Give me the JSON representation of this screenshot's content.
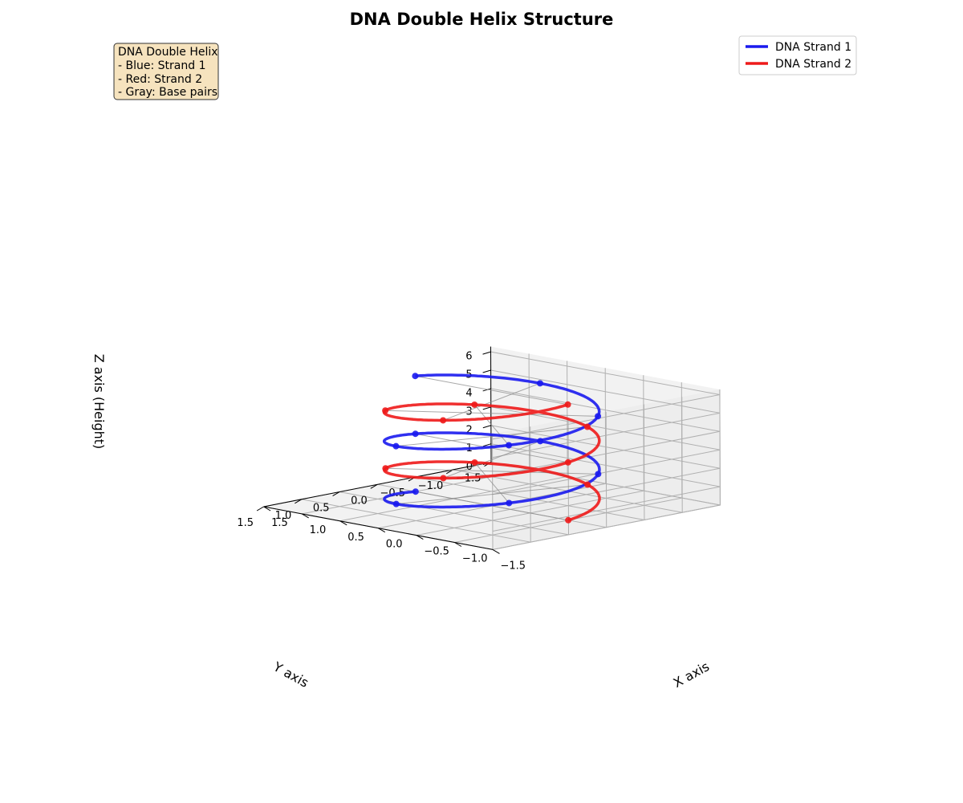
{
  "chart_data": {
    "type": "line",
    "projection": "3d",
    "title": "DNA Double Helix Structure",
    "xlabel": "X axis",
    "ylabel": "Y axis",
    "zlabel": "Z axis (Height)",
    "xlim": [
      -1.5,
      1.5
    ],
    "ylim": [
      -1.5,
      1.5
    ],
    "zlim": [
      0,
      6.28
    ],
    "x_ticks": [
      "−1.5",
      "−1.0",
      "−0.5",
      "0.0",
      "0.5",
      "1.0",
      "1.5"
    ],
    "y_ticks": [
      "−1.5",
      "−1.0",
      "−0.5",
      "0.0",
      "0.5",
      "1.0",
      "1.5"
    ],
    "z_ticks": [
      "0",
      "1",
      "2",
      "3",
      "4",
      "5",
      "6"
    ],
    "grid": true,
    "legend_position": "top-right",
    "series": [
      {
        "name": "DNA Strand 1",
        "color": "#1a1aee",
        "param": "x = cos(t), y = sin(t), z = t / 2",
        "t_range": [
          0,
          12.566
        ],
        "marker_t": [
          0,
          1.257,
          2.513,
          3.77,
          5.027,
          6.283,
          7.54,
          8.796,
          10.053,
          11.31,
          12.566
        ]
      },
      {
        "name": "DNA Strand 2",
        "color": "#ee1a1a",
        "param": "x = cos(t + π), y = sin(t + π), z = t / 2",
        "t_range": [
          0,
          12.566
        ],
        "marker_t": [
          0,
          1.257,
          2.513,
          3.77,
          5.027,
          6.283,
          7.54,
          8.796,
          10.053,
          11.31,
          12.566
        ]
      }
    ],
    "base_pairs_t": [
      0,
      1.257,
      2.513,
      3.77,
      5.027,
      6.283,
      7.54,
      8.796,
      10.053,
      11.31,
      12.566
    ],
    "annotation": {
      "lines": [
        "DNA Double Helix",
        "- Blue: Strand 1",
        "- Red: Strand 2",
        "- Gray: Base pairs"
      ]
    }
  }
}
